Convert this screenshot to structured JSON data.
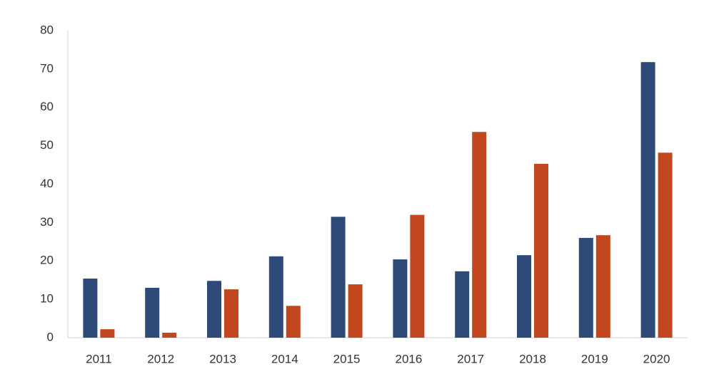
{
  "chart_data": {
    "type": "bar",
    "categories": [
      "2011",
      "2012",
      "2013",
      "2014",
      "2015",
      "2016",
      "2017",
      "2018",
      "2019",
      "2020"
    ],
    "series": [
      {
        "color": "#2d4a78",
        "values": [
          15.4,
          13,
          14.8,
          21.2,
          31.5,
          20.4,
          17.3,
          21.5,
          26,
          71.8
        ]
      },
      {
        "color": "#c2461e",
        "values": [
          2.2,
          1.3,
          12.6,
          8.3,
          13.9,
          32,
          53.6,
          45.3,
          26.7,
          48.2
        ]
      }
    ],
    "ylim": [
      0,
      80
    ],
    "yticks": [
      0,
      10,
      20,
      30,
      40,
      50,
      60,
      70,
      80
    ],
    "grid": false
  }
}
